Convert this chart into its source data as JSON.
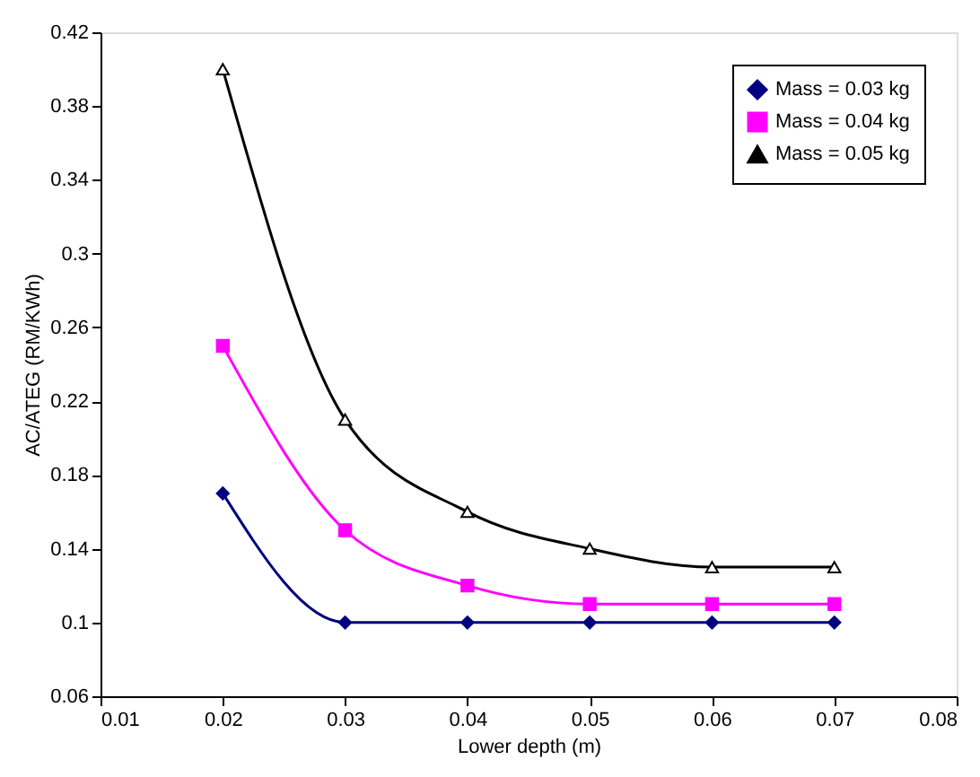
{
  "chart_data": {
    "type": "line",
    "xlabel": "Lower depth (m)",
    "ylabel": "AC/ATEG (RM/KWh)",
    "x": [
      0.02,
      0.03,
      0.04,
      0.05,
      0.06,
      0.07
    ],
    "series": [
      {
        "name": "Mass = 0.03 kg",
        "color": "#000080",
        "marker": "diamond",
        "values": [
          0.17,
          0.1,
          0.1,
          0.1,
          0.1,
          0.1
        ]
      },
      {
        "name": "Mass = 0.04 kg",
        "color": "#ff00ff",
        "marker": "square",
        "values": [
          0.25,
          0.15,
          0.12,
          0.11,
          0.11,
          0.11
        ]
      },
      {
        "name": "Mass = 0.05 kg",
        "color": "#000000",
        "marker": "triangle",
        "values": [
          0.4,
          0.21,
          0.16,
          0.14,
          0.13,
          0.13
        ]
      }
    ],
    "xlim": [
      0.01,
      0.08
    ],
    "xticks": [
      0.01,
      0.02,
      0.03,
      0.04,
      0.05,
      0.06,
      0.07,
      0.08
    ],
    "ylim": [
      0.06,
      0.42
    ],
    "yticks": [
      0.06,
      0.1,
      0.14,
      0.18,
      0.22,
      0.26,
      0.3,
      0.34,
      0.38,
      0.42
    ],
    "grid": false,
    "legend": "top right",
    "line_style": "solid"
  }
}
